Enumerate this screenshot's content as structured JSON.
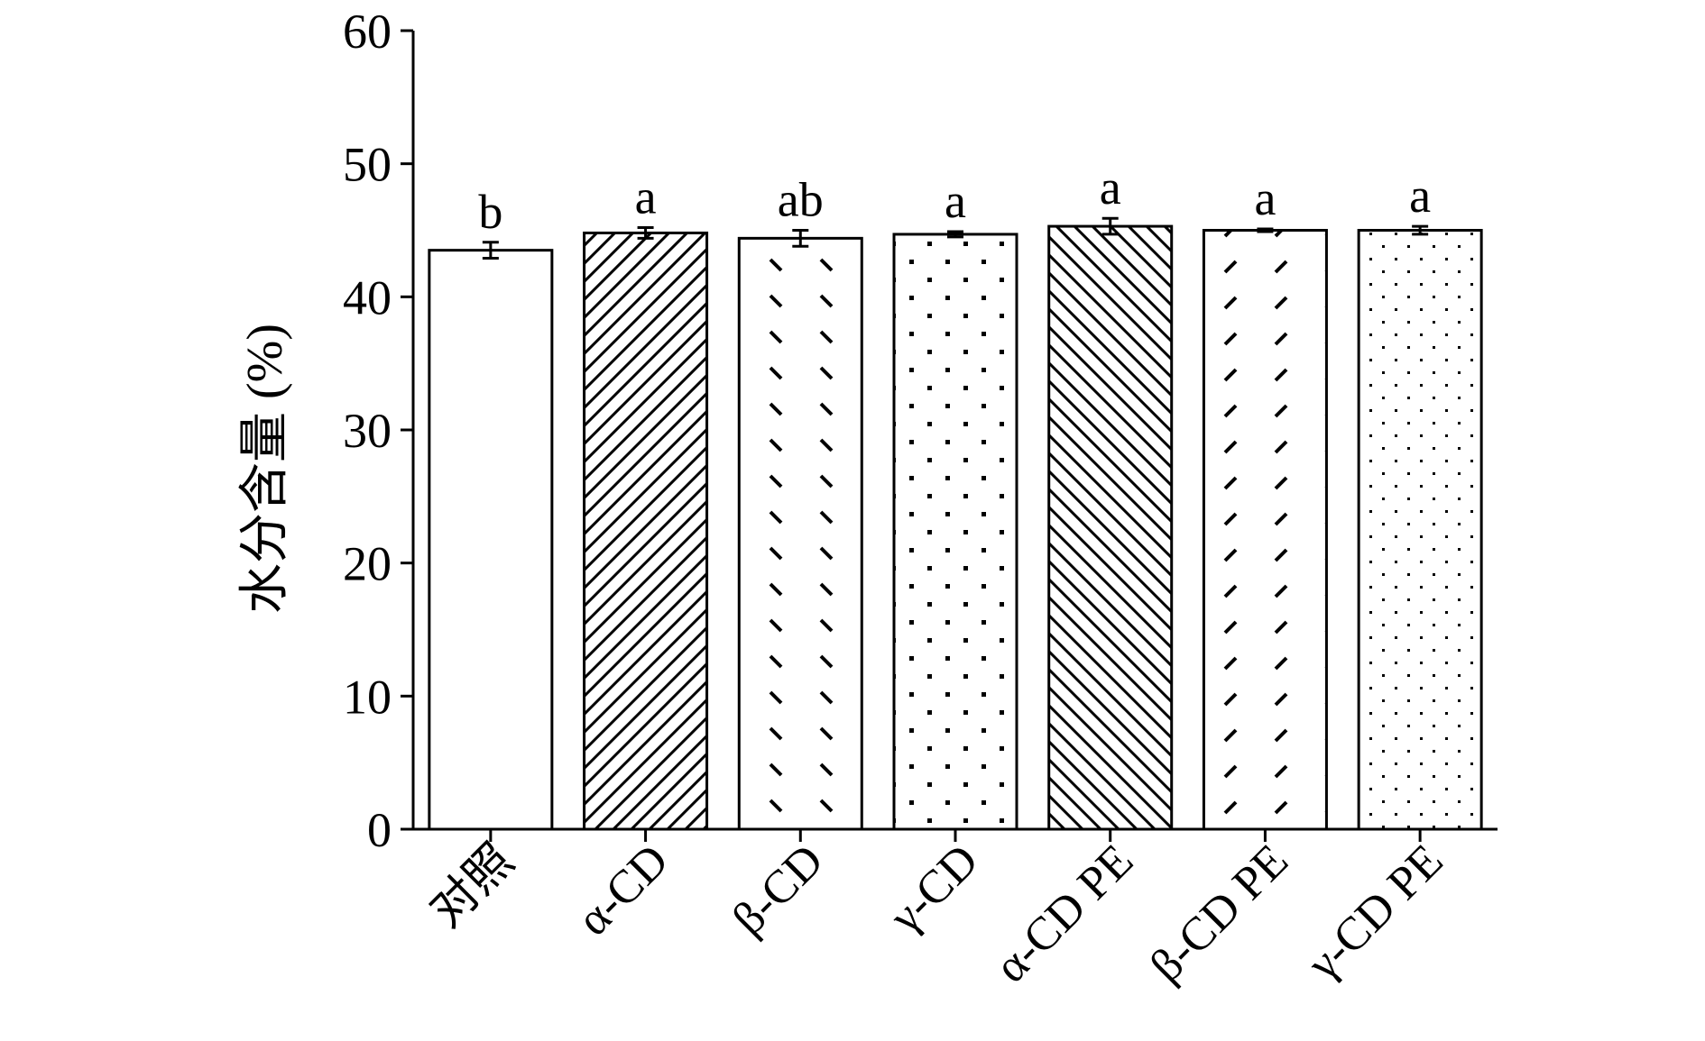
{
  "chart_data": {
    "type": "bar",
    "ylabel": "水分含量 (%)",
    "ylim": [
      0,
      60
    ],
    "yticks": [
      0,
      10,
      20,
      30,
      40,
      50,
      60
    ],
    "categories": [
      "对照",
      "α-CD",
      "β-CD",
      "γ-CD",
      "α-CD PE",
      "β-CD PE",
      "γ-CD PE"
    ],
    "values": [
      43.5,
      44.8,
      44.4,
      44.7,
      45.3,
      45.0,
      45.0
    ],
    "errors": [
      0.6,
      0.4,
      0.6,
      0.2,
      0.6,
      0.1,
      0.3
    ],
    "significance": [
      "b",
      "a",
      "ab",
      "a",
      "a",
      "a",
      "a"
    ],
    "patterns": [
      "none",
      "diag-up-dense",
      "dash-down",
      "dots",
      "diag-down-dense",
      "dash-up",
      "fine-dots"
    ]
  }
}
